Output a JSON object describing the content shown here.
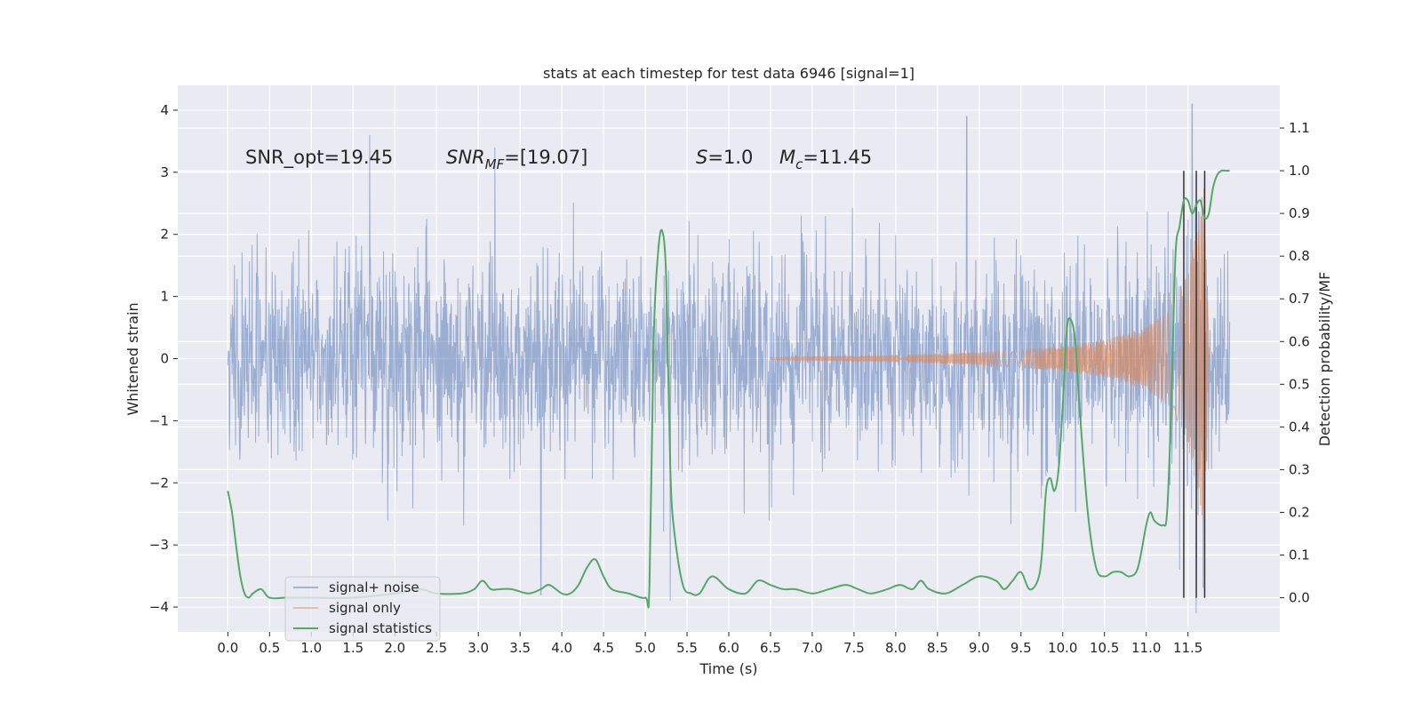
{
  "chart_data": {
    "type": "line",
    "title": "stats at each timestep for test data 6946 [signal=1]",
    "xlabel": "Time (s)",
    "ylabel": "Whitened strain",
    "ylabel_right": "Detection probability/MF",
    "xlim": [
      -0.6,
      12.6
    ],
    "ylim": [
      -4.4,
      4.4
    ],
    "ylim_right": [
      -0.08,
      1.2
    ],
    "x_ticks": [
      "0.0",
      "0.5",
      "1.0",
      "1.5",
      "2.0",
      "2.5",
      "3.0",
      "3.5",
      "4.0",
      "4.5",
      "5.0",
      "5.5",
      "6.0",
      "6.5",
      "7.0",
      "7.5",
      "8.0",
      "8.5",
      "9.0",
      "9.5",
      "10.0",
      "10.5",
      "11.0",
      "11.5"
    ],
    "y_ticks": [
      "4",
      "3",
      "2",
      "1",
      "0",
      "−1",
      "−2",
      "−3",
      "−4"
    ],
    "y_right_ticks": [
      "1.1",
      "1.0",
      "0.9",
      "0.8",
      "0.7",
      "0.6",
      "0.5",
      "0.4",
      "0.3",
      "0.2",
      "0.1",
      "0.0"
    ],
    "grid": true,
    "legend": "lower-left",
    "annotations": {
      "snr_opt": "SNR_opt=19.45",
      "snr_mf_base": "SNR",
      "snr_mf_sub": "MF",
      "snr_mf_value": "=[19.07]",
      "s_var": "S",
      "s_value": "=1.0",
      "mc_var": "M",
      "mc_sub": "c",
      "mc_value": "=11.45"
    },
    "colors": {
      "signal_noise": "#4c72b0",
      "signal_only": "#dd8452",
      "signal_statistics": "#55a868",
      "markers": "#333333",
      "background": "#eaeaf2"
    },
    "series": [
      {
        "name": "signal+ noise",
        "axis": "left",
        "x_range": [
          0.0,
          12.0
        ],
        "noise_std": 0.8,
        "peaks": [
          [
            1.7,
            3.6
          ],
          [
            3.2,
            3.4
          ],
          [
            8.85,
            3.9
          ],
          [
            11.55,
            4.1
          ],
          [
            5.3,
            -3.9
          ],
          [
            3.75,
            -3.8
          ],
          [
            11.6,
            -4.1
          ],
          [
            11.4,
            -3.4
          ]
        ]
      },
      {
        "name": "signal only",
        "axis": "left",
        "x_range": [
          6.5,
          11.75
        ],
        "amplitude_envelope": [
          [
            6.5,
            0.02
          ],
          [
            8.0,
            0.06
          ],
          [
            9.0,
            0.1
          ],
          [
            10.0,
            0.2
          ],
          [
            10.5,
            0.3
          ],
          [
            11.0,
            0.5
          ],
          [
            11.3,
            0.8
          ],
          [
            11.5,
            1.4
          ],
          [
            11.6,
            2.1
          ],
          [
            11.7,
            2.8
          ],
          [
            11.75,
            0.0
          ]
        ]
      },
      {
        "name": "signal statistics",
        "axis": "right",
        "x": [
          0.0,
          0.05,
          0.1,
          0.15,
          0.2,
          0.25,
          0.3,
          0.4,
          0.5,
          0.7,
          1.0,
          1.5,
          2.0,
          2.3,
          2.5,
          2.8,
          2.95,
          3.05,
          3.15,
          3.25,
          3.4,
          3.6,
          3.75,
          3.85,
          4.0,
          4.1,
          4.2,
          4.3,
          4.4,
          4.5,
          4.6,
          4.8,
          5.0,
          5.05,
          5.1,
          5.15,
          5.2,
          5.25,
          5.3,
          5.35,
          5.45,
          5.55,
          5.65,
          5.8,
          6.0,
          6.2,
          6.35,
          6.5,
          6.65,
          6.8,
          7.0,
          7.2,
          7.4,
          7.55,
          7.7,
          7.9,
          8.05,
          8.2,
          8.3,
          8.4,
          8.6,
          8.8,
          9.0,
          9.2,
          9.3,
          9.4,
          9.5,
          9.6,
          9.7,
          9.75,
          9.8,
          9.85,
          9.9,
          9.95,
          10.0,
          10.05,
          10.1,
          10.15,
          10.2,
          10.3,
          10.4,
          10.5,
          10.6,
          10.7,
          10.8,
          10.9,
          11.0,
          11.05,
          11.1,
          11.2,
          11.25,
          11.3,
          11.35,
          11.4,
          11.45,
          11.5,
          11.55,
          11.6,
          11.65,
          11.7,
          11.75,
          11.8,
          11.85,
          11.9,
          11.95,
          12.0
        ],
        "values": [
          0.25,
          0.2,
          0.12,
          0.05,
          0.01,
          0.0,
          0.01,
          0.02,
          0.0,
          0.0,
          0.0,
          0.0,
          0.01,
          0.02,
          0.01,
          0.01,
          0.02,
          0.04,
          0.02,
          0.02,
          0.02,
          0.01,
          0.02,
          0.03,
          0.01,
          0.01,
          0.03,
          0.07,
          0.09,
          0.05,
          0.02,
          0.01,
          0.0,
          0.03,
          0.6,
          0.8,
          0.86,
          0.75,
          0.3,
          0.15,
          0.03,
          0.01,
          0.01,
          0.05,
          0.02,
          0.01,
          0.04,
          0.03,
          0.02,
          0.02,
          0.01,
          0.02,
          0.03,
          0.02,
          0.01,
          0.02,
          0.03,
          0.02,
          0.04,
          0.02,
          0.01,
          0.03,
          0.05,
          0.04,
          0.02,
          0.04,
          0.06,
          0.02,
          0.04,
          0.1,
          0.25,
          0.28,
          0.25,
          0.3,
          0.45,
          0.63,
          0.65,
          0.6,
          0.45,
          0.2,
          0.07,
          0.05,
          0.06,
          0.06,
          0.05,
          0.07,
          0.17,
          0.2,
          0.18,
          0.17,
          0.2,
          0.45,
          0.8,
          0.87,
          0.93,
          0.93,
          0.9,
          0.92,
          0.93,
          0.89,
          0.9,
          0.96,
          0.99,
          1.0,
          1.0,
          1.0
        ]
      }
    ],
    "vlines": [
      11.45,
      11.6,
      11.7
    ]
  }
}
